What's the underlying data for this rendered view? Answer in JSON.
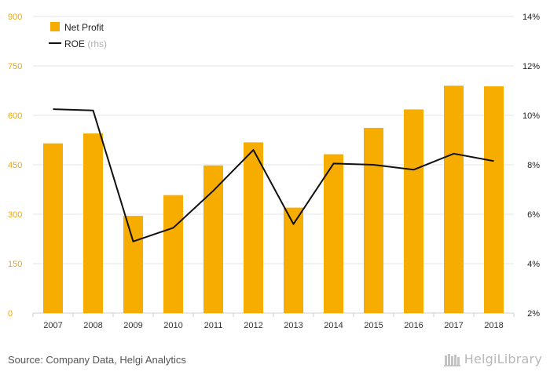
{
  "colors": {
    "bar": "#f7ad00",
    "line": "#111111",
    "left_axis": "#f0a900",
    "right_axis": "#222222"
  },
  "legend": {
    "bar_label": "Net Profit",
    "line_label": "ROE",
    "line_note": "(rhs)"
  },
  "source": "Source: Company Data, Helgi Analytics",
  "logo_text": "HelgiLibrary",
  "chart_data": {
    "type": "bar",
    "categories": [
      "2007",
      "2008",
      "2009",
      "2010",
      "2011",
      "2012",
      "2013",
      "2014",
      "2015",
      "2016",
      "2017",
      "2018"
    ],
    "series": [
      {
        "name": "Net Profit",
        "type": "bar",
        "axis": "left",
        "values": [
          515,
          545,
          295,
          358,
          448,
          518,
          320,
          482,
          562,
          618,
          690,
          688
        ]
      },
      {
        "name": "ROE",
        "type": "line",
        "axis": "right",
        "values": [
          10.25,
          10.2,
          4.9,
          5.45,
          6.95,
          8.6,
          5.6,
          8.05,
          8.0,
          7.8,
          8.45,
          8.15
        ]
      }
    ],
    "y_left": {
      "min": 0,
      "max": 900,
      "ticks": [
        0,
        150,
        300,
        450,
        600,
        750,
        900
      ],
      "labels": [
        "0",
        "150",
        "300",
        "450",
        "600",
        "750",
        "900"
      ]
    },
    "y_right": {
      "min": 2,
      "max": 14,
      "ticks": [
        2,
        4,
        6,
        8,
        10,
        12,
        14
      ],
      "labels": [
        "2%",
        "4%",
        "6%",
        "8%",
        "10%",
        "12%",
        "14%"
      ]
    },
    "grid": true,
    "legend_position": "top-left"
  }
}
